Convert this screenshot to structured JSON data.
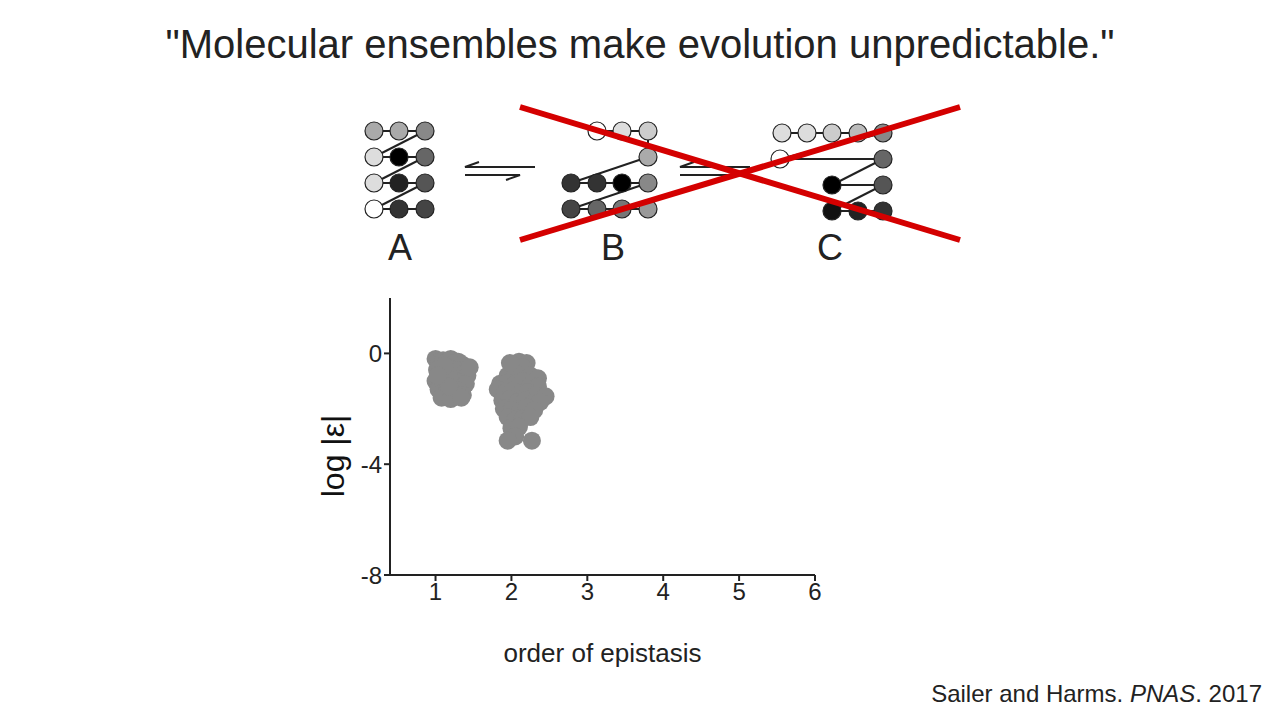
{
  "title": "\"Molecular ensembles make evolution unpredictable.\"",
  "diagram": {
    "states": [
      "A",
      "B",
      "C"
    ],
    "excluded": [
      "B",
      "C"
    ]
  },
  "citation": [
    "Sailer and Harms. ",
    "PNAS",
    ". 2017"
  ],
  "chart_data": {
    "type": "scatter",
    "x_label": "order of epistasis",
    "y_label": "log |ε|",
    "color": "#888888",
    "marker": "circle",
    "xlim": [
      0.4,
      6
    ],
    "xticks": [
      1,
      2,
      3,
      4,
      5,
      6
    ],
    "ylim": [
      -8,
      2
    ],
    "yticks": [
      -8,
      -4,
      0
    ],
    "x": [
      1.0,
      1.05,
      1.1,
      1.15,
      1.2,
      1.25,
      1.3,
      1.35,
      1.02,
      1.08,
      1.14,
      1.22,
      1.28,
      1.38,
      1.42,
      1.0,
      1.06,
      1.12,
      1.18,
      1.26,
      1.32,
      1.4,
      1.04,
      1.1,
      1.16,
      1.24,
      1.3,
      1.36,
      1.08,
      1.2,
      1.34,
      1.45,
      1.12,
      1.18,
      1.03,
      2.1,
      2.2,
      2.15,
      1.95,
      2.05,
      2.25,
      2.35,
      1.85,
      1.95,
      2.05,
      2.15,
      2.25,
      2.35,
      1.82,
      1.92,
      2.02,
      2.12,
      2.22,
      2.32,
      2.45,
      1.88,
      1.98,
      2.08,
      2.18,
      2.28,
      2.38,
      1.9,
      2.0,
      2.1,
      2.2,
      2.3,
      1.95,
      2.05,
      2.15,
      2.25,
      2.0,
      2.1,
      2.05,
      1.95,
      2.27,
      1.98
    ],
    "values": [
      -0.2,
      -0.3,
      -0.25,
      -0.3,
      -0.2,
      -0.35,
      -0.3,
      -0.4,
      -0.6,
      -0.7,
      -0.55,
      -0.65,
      -0.6,
      -0.7,
      -0.8,
      -1.0,
      -0.9,
      -1.1,
      -0.95,
      -1.0,
      -1.05,
      -1.1,
      -1.3,
      -1.4,
      -1.3,
      -1.45,
      -1.35,
      -1.5,
      -1.6,
      -1.65,
      -1.6,
      -0.5,
      -0.45,
      -1.2,
      -0.8,
      -0.3,
      -0.35,
      -0.5,
      -0.8,
      -0.7,
      -0.8,
      -0.9,
      -1.1,
      -1.05,
      -1.1,
      -1.0,
      -1.15,
      -1.2,
      -1.3,
      -1.4,
      -1.35,
      -1.45,
      -1.4,
      -1.5,
      -1.55,
      -1.7,
      -1.65,
      -1.75,
      -1.7,
      -1.8,
      -1.75,
      -2.0,
      -2.05,
      -2.1,
      -1.95,
      -2.05,
      -2.3,
      -2.4,
      -2.35,
      -2.3,
      -2.7,
      -2.65,
      -3.0,
      -3.15,
      -3.15,
      -0.35
    ]
  }
}
